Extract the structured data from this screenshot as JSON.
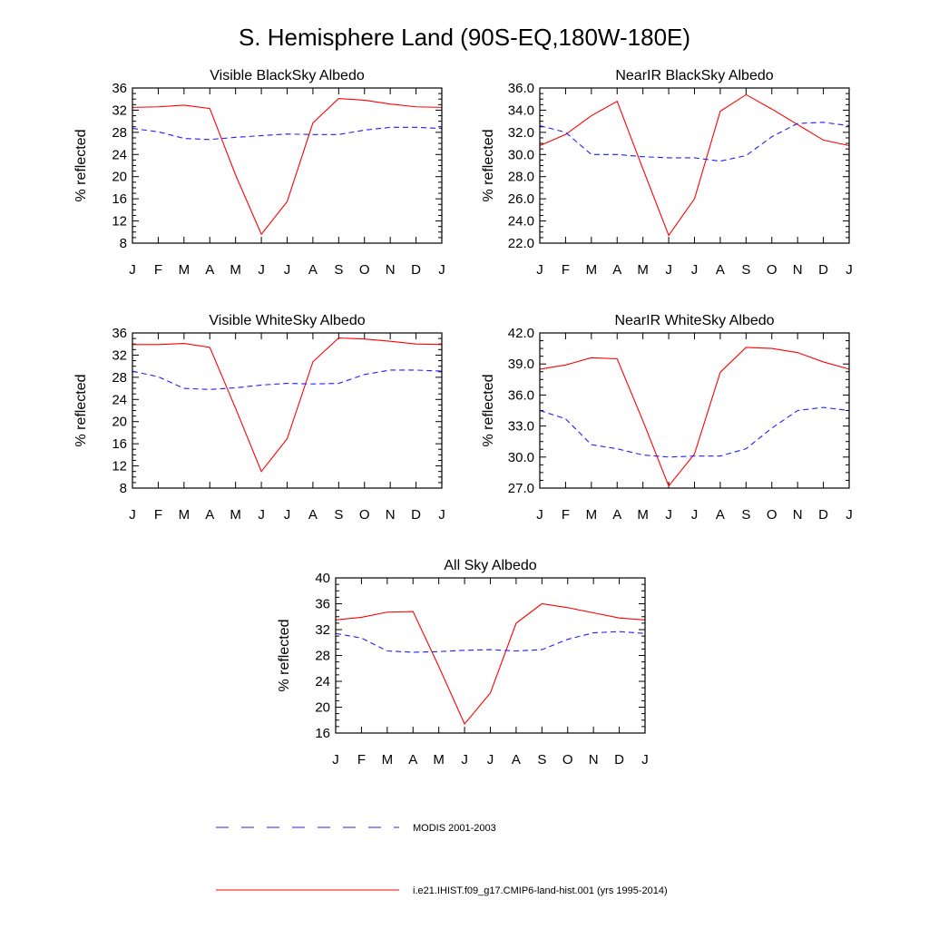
{
  "figure": {
    "title": "S. Hemisphere Land (90S-EQ,180W-180E)"
  },
  "legend": {
    "items": [
      {
        "label": "MODIS 2001-2003",
        "color": "#1f1fff",
        "style": "dashed"
      },
      {
        "label": "i.e21.IHIST.f09_g17.CMIP6-land-hist.001 (yrs 1995-2014)",
        "color": "#ff0000",
        "style": "solid"
      }
    ]
  },
  "chart_data": [
    {
      "type": "line",
      "title": "Visible BlackSky Albedo",
      "ylabel": "% reflected",
      "xlabel": "",
      "categories": [
        "J",
        "F",
        "M",
        "A",
        "M",
        "J",
        "J",
        "A",
        "S",
        "O",
        "N",
        "D",
        "J"
      ],
      "ylim": [
        8,
        36
      ],
      "yticks": [
        "8",
        "12",
        "16",
        "20",
        "24",
        "28",
        "32",
        "36"
      ],
      "grid": false,
      "series": [
        {
          "name": "i.e21.IHIST.f09_g17.CMIP6-land-hist.001 (yrs 1995-2014)",
          "style": "solid",
          "color": "#ff0000",
          "values": [
            32.5,
            32.6,
            32.9,
            32.3,
            20.3,
            9.6,
            15.5,
            29.7,
            34.1,
            33.8,
            33.1,
            32.6,
            32.5
          ]
        },
        {
          "name": "MODIS 2001-2003",
          "style": "dashed",
          "color": "#1f1fff",
          "values": [
            28.7,
            28.1,
            26.9,
            26.7,
            27.1,
            27.4,
            27.7,
            27.6,
            27.6,
            28.4,
            28.9,
            28.9,
            28.7
          ]
        }
      ]
    },
    {
      "type": "line",
      "title": "NearIR BlackSky Albedo",
      "ylabel": "% reflected",
      "xlabel": "",
      "categories": [
        "J",
        "F",
        "M",
        "A",
        "M",
        "J",
        "J",
        "A",
        "S",
        "O",
        "N",
        "D",
        "J"
      ],
      "ylim": [
        22,
        36
      ],
      "yticks": [
        "22.0",
        "24.0",
        "26.0",
        "28.0",
        "30.0",
        "32.0",
        "34.0",
        "36.0"
      ],
      "grid": false,
      "series": [
        {
          "name": "i.e21.IHIST.f09_g17.CMIP6-land-hist.001 (yrs 1995-2014)",
          "style": "solid",
          "color": "#ff0000",
          "values": [
            30.8,
            31.8,
            33.5,
            34.8,
            28.7,
            22.7,
            26.0,
            33.9,
            35.4,
            34.1,
            32.7,
            31.3,
            30.8
          ]
        },
        {
          "name": "MODIS 2001-2003",
          "style": "dashed",
          "color": "#1f1fff",
          "values": [
            32.6,
            32.0,
            30.0,
            30.0,
            29.8,
            29.7,
            29.7,
            29.4,
            29.9,
            31.6,
            32.8,
            32.9,
            32.6
          ]
        }
      ]
    },
    {
      "type": "line",
      "title": "Visible WhiteSky Albedo",
      "ylabel": "% reflected",
      "xlabel": "",
      "categories": [
        "J",
        "F",
        "M",
        "A",
        "M",
        "J",
        "J",
        "A",
        "S",
        "O",
        "N",
        "D",
        "J"
      ],
      "ylim": [
        8,
        36
      ],
      "yticks": [
        "8",
        "12",
        "16",
        "20",
        "24",
        "28",
        "32",
        "36"
      ],
      "grid": false,
      "series": [
        {
          "name": "i.e21.IHIST.f09_g17.CMIP6-land-hist.001 (yrs 1995-2014)",
          "style": "solid",
          "color": "#ff0000",
          "values": [
            33.9,
            33.9,
            34.1,
            33.4,
            22.4,
            11.0,
            16.9,
            30.8,
            35.1,
            34.9,
            34.5,
            34.0,
            33.9
          ]
        },
        {
          "name": "MODIS 2001-2003",
          "style": "dashed",
          "color": "#1f1fff",
          "values": [
            29.1,
            28.1,
            26.0,
            25.8,
            26.1,
            26.6,
            26.9,
            26.8,
            26.9,
            28.5,
            29.3,
            29.3,
            29.1
          ]
        }
      ]
    },
    {
      "type": "line",
      "title": "NearIR WhiteSky Albedo",
      "ylabel": "% reflected",
      "xlabel": "",
      "categories": [
        "J",
        "F",
        "M",
        "A",
        "M",
        "J",
        "J",
        "A",
        "S",
        "O",
        "N",
        "D",
        "J"
      ],
      "ylim": [
        27,
        42
      ],
      "yticks": [
        "27.0",
        "30.0",
        "33.0",
        "36.0",
        "39.0",
        "42.0"
      ],
      "grid": false,
      "series": [
        {
          "name": "i.e21.IHIST.f09_g17.CMIP6-land-hist.001 (yrs 1995-2014)",
          "style": "solid",
          "color": "#ff0000",
          "values": [
            38.5,
            38.9,
            39.6,
            39.5,
            33.5,
            27.2,
            30.3,
            38.2,
            40.6,
            40.5,
            40.1,
            39.2,
            38.5
          ]
        },
        {
          "name": "MODIS 2001-2003",
          "style": "dashed",
          "color": "#1f1fff",
          "values": [
            34.5,
            33.7,
            31.2,
            30.8,
            30.2,
            30.0,
            30.1,
            30.1,
            30.8,
            32.8,
            34.5,
            34.8,
            34.5
          ]
        }
      ]
    },
    {
      "type": "line",
      "title": "All Sky Albedo",
      "ylabel": "% reflected",
      "xlabel": "",
      "categories": [
        "J",
        "F",
        "M",
        "A",
        "M",
        "J",
        "J",
        "A",
        "S",
        "O",
        "N",
        "D",
        "J"
      ],
      "ylim": [
        16,
        40
      ],
      "yticks": [
        "16",
        "20",
        "24",
        "28",
        "32",
        "36",
        "40"
      ],
      "grid": false,
      "series": [
        {
          "name": "i.e21.IHIST.f09_g17.CMIP6-land-hist.001 (yrs 1995-2014)",
          "style": "solid",
          "color": "#ff0000",
          "values": [
            33.5,
            33.9,
            34.7,
            34.8,
            26.3,
            17.4,
            22.2,
            33.0,
            36.0,
            35.4,
            34.6,
            33.8,
            33.5
          ]
        },
        {
          "name": "MODIS 2001-2003",
          "style": "dashed",
          "color": "#1f1fff",
          "values": [
            31.4,
            30.7,
            28.7,
            28.5,
            28.6,
            28.8,
            28.9,
            28.7,
            28.9,
            30.5,
            31.5,
            31.7,
            31.4
          ]
        }
      ]
    }
  ]
}
